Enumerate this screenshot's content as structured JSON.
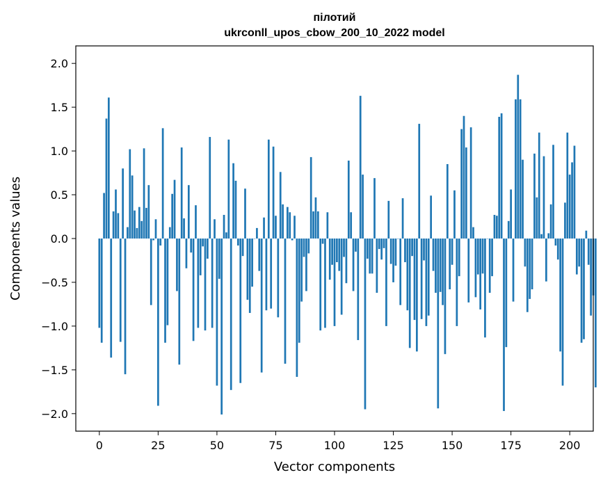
{
  "chart_data": {
    "type": "bar",
    "title_line1": "пілотий",
    "title_line2": "ukrconll_upos_cbow_200_10_2022 model",
    "xlabel": "Vector components",
    "ylabel": "Components values",
    "xlim": [
      -10,
      210
    ],
    "ylim": [
      -2.2,
      2.2
    ],
    "xticks": [
      0,
      25,
      50,
      75,
      100,
      125,
      150,
      175,
      200
    ],
    "xtick_labels": [
      "0",
      "25",
      "50",
      "75",
      "100",
      "125",
      "150",
      "175",
      "200"
    ],
    "yticks": [
      -2.0,
      -1.5,
      -1.0,
      -0.5,
      0.0,
      0.5,
      1.0,
      1.5,
      2.0
    ],
    "ytick_labels": [
      "−2.0",
      "−1.5",
      "−1.0",
      "−0.5",
      "0.0",
      "0.5",
      "1.0",
      "1.5",
      "2.0"
    ],
    "bar_color": "#1f77b4",
    "grid": false,
    "values": [
      -1.02,
      -1.19,
      0.52,
      1.37,
      1.61,
      -1.36,
      0.31,
      0.56,
      0.29,
      -1.18,
      0.8,
      -1.55,
      0.13,
      1.02,
      0.72,
      0.32,
      0.12,
      0.36,
      0.2,
      1.03,
      0.35,
      0.61,
      -0.76,
      -0.02,
      0.22,
      -1.91,
      -0.08,
      1.26,
      -1.19,
      -0.99,
      0.13,
      0.51,
      0.67,
      -0.6,
      -1.44,
      1.04,
      0.23,
      -0.34,
      0.61,
      -0.16,
      -1.17,
      0.38,
      -1.02,
      -0.42,
      -0.09,
      -1.05,
      -0.23,
      1.16,
      -1.02,
      0.22,
      -1.68,
      -0.46,
      -2.01,
      0.27,
      0.07,
      1.13,
      -1.73,
      0.86,
      0.66,
      -0.08,
      -1.65,
      -0.2,
      0.57,
      -0.7,
      -0.85,
      -0.55,
      0.0,
      0.12,
      -0.37,
      -1.53,
      0.24,
      -0.82,
      1.13,
      -0.8,
      1.05,
      0.26,
      -0.9,
      0.76,
      0.39,
      -1.43,
      0.36,
      0.3,
      -0.02,
      0.26,
      -1.58,
      -1.19,
      -0.72,
      -0.21,
      -0.6,
      -0.17,
      0.93,
      0.31,
      0.47,
      0.31,
      -1.05,
      -0.06,
      -1.02,
      0.3,
      -0.47,
      -0.3,
      -1.0,
      -0.27,
      -0.37,
      -0.87,
      -0.21,
      -0.51,
      0.89,
      0.3,
      -0.6,
      -0.15,
      -1.16,
      1.63,
      0.73,
      -1.95,
      -0.23,
      -0.4,
      -0.4,
      0.69,
      -0.62,
      -0.12,
      -0.24,
      -0.11,
      -1.0,
      0.43,
      -0.29,
      -0.5,
      -0.31,
      0.0,
      -0.76,
      0.46,
      -0.27,
      -0.82,
      -1.25,
      -0.2,
      -0.93,
      -1.29,
      1.31,
      -0.92,
      -0.25,
      -1.0,
      -0.88,
      0.49,
      -0.37,
      -0.62,
      -1.94,
      -0.61,
      -0.76,
      -1.32,
      0.85,
      -0.58,
      -0.3,
      0.55,
      -1.0,
      -0.43,
      1.25,
      1.4,
      1.04,
      -0.73,
      1.27,
      0.13,
      -0.67,
      -0.41,
      -0.81,
      -0.4,
      -1.13,
      0.0,
      -0.62,
      -0.43,
      0.27,
      0.26,
      1.39,
      1.43,
      -1.97,
      -1.24,
      0.2,
      0.56,
      -0.72,
      1.59,
      1.87,
      1.59,
      0.9,
      -0.32,
      -0.84,
      -0.69,
      -0.58,
      0.97,
      0.47,
      1.21,
      0.05,
      0.94,
      -0.49,
      0.06,
      0.39,
      1.07,
      -0.08,
      -0.24,
      -1.29,
      -1.68,
      0.41,
      1.21,
      0.73,
      0.87,
      1.06,
      -0.41,
      -0.32,
      -1.19,
      -1.15,
      0.09,
      -0.3,
      -0.88,
      -0.65,
      -1.7
    ]
  }
}
